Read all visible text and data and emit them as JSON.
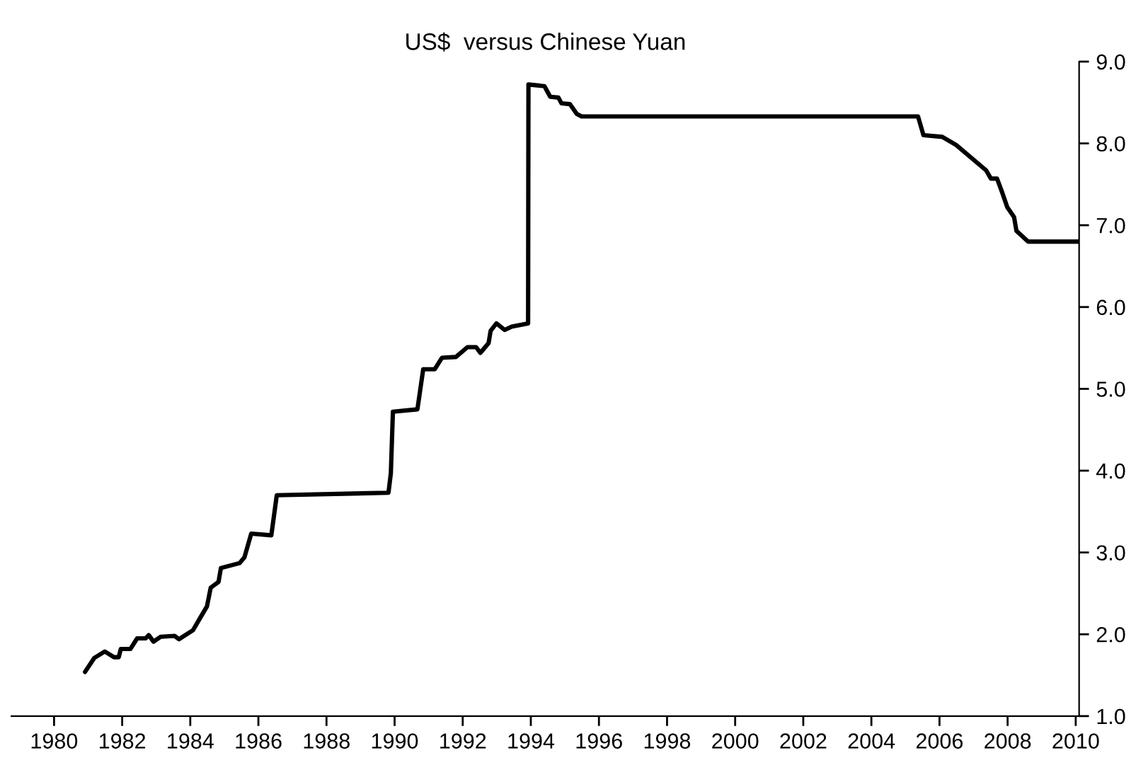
{
  "chart_data": {
    "type": "line",
    "title": "US$  versus Chinese Yuan",
    "x": [
      1980.91,
      1981.18,
      1981.49,
      1981.76,
      1981.9,
      1981.96,
      1982.24,
      1982.44,
      1982.69,
      1982.78,
      1982.92,
      1983.13,
      1983.54,
      1983.67,
      1984.08,
      1984.29,
      1984.49,
      1984.6,
      1984.83,
      1984.9,
      1985.45,
      1985.59,
      1985.79,
      1986.38,
      1986.54,
      1989.82,
      1989.89,
      1989.95,
      1990.67,
      1990.84,
      1991.18,
      1991.39,
      1991.8,
      1992.14,
      1992.39,
      1992.52,
      1992.76,
      1992.82,
      1992.99,
      1993.23,
      1993.44,
      1993.92,
      1993.93,
      1994.4,
      1994.57,
      1994.81,
      1994.9,
      1995.15,
      1995.35,
      1995.49,
      2005.37,
      2005.53,
      2006.08,
      2006.49,
      2007.37,
      2007.51,
      2007.69,
      2007.85,
      2007.99,
      2008.19,
      2008.26,
      2008.6,
      2010.1
    ],
    "series": [
      {
        "color": "#000000",
        "values": [
          1.54,
          1.71,
          1.79,
          1.72,
          1.72,
          1.82,
          1.82,
          1.95,
          1.95,
          1.99,
          1.91,
          1.97,
          1.98,
          1.94,
          2.05,
          2.2,
          2.34,
          2.57,
          2.64,
          2.81,
          2.87,
          2.94,
          3.23,
          3.21,
          3.7,
          3.73,
          3.97,
          4.72,
          4.75,
          5.24,
          5.24,
          5.38,
          5.39,
          5.51,
          5.51,
          5.44,
          5.56,
          5.71,
          5.8,
          5.72,
          5.76,
          5.8,
          8.72,
          8.7,
          8.57,
          8.56,
          8.49,
          8.48,
          8.36,
          8.33,
          8.33,
          8.1,
          8.08,
          7.98,
          7.67,
          7.57,
          7.57,
          7.39,
          7.22,
          7.1,
          6.93,
          6.8,
          6.8
        ]
      }
    ],
    "xlim": [
      1978.75,
      2010.1
    ],
    "xticks": [
      1980,
      1982,
      1984,
      1986,
      1988,
      1990,
      1992,
      1994,
      1996,
      1998,
      2000,
      2002,
      2004,
      2006,
      2008,
      2010
    ],
    "ylim": [
      1.0,
      9.0
    ],
    "yticks": [
      {
        "value": 1,
        "label": "1.0"
      },
      {
        "value": 2,
        "label": "2.0"
      },
      {
        "value": 3,
        "label": "3.0"
      },
      {
        "value": 4,
        "label": "4.0"
      },
      {
        "value": 5,
        "label": "5.0"
      },
      {
        "value": 6,
        "label": "6.0"
      },
      {
        "value": 7,
        "label": "7.0"
      },
      {
        "value": 8,
        "label": "8.0"
      },
      {
        "value": 9,
        "label": "9.0"
      }
    ],
    "grid": false
  }
}
